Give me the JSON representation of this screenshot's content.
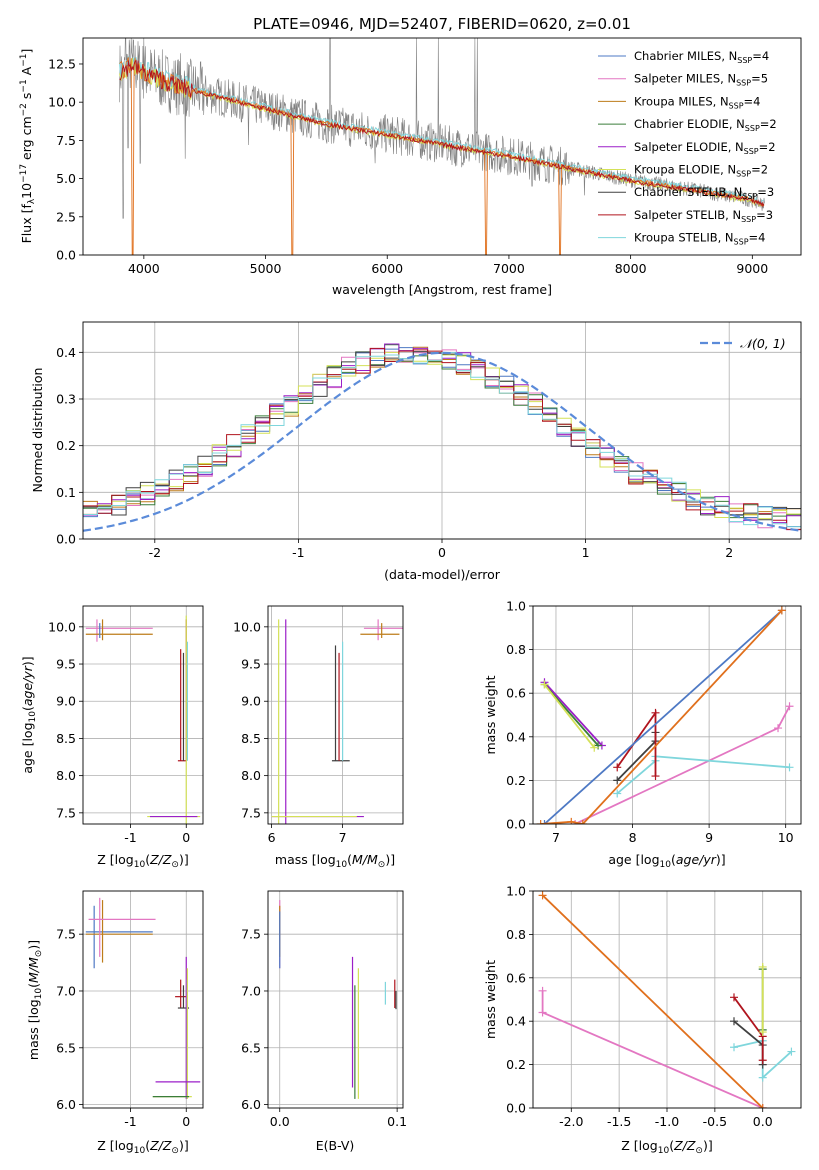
{
  "figure": {
    "title": "PLATE=0946, MJD=52407, FIBERID=0620, z=0.01"
  },
  "colors": {
    "Chabrier MILES": "#4e79c4",
    "Salpeter MILES": "#e377c2",
    "Kroupa MILES": "#bd7c1a",
    "Chabrier ELODIE": "#3a7d3a",
    "Salpeter ELODIE": "#9b1fc8",
    "Kroupa ELODIE": "#d4e157",
    "Chabrier STELIB": "#404040",
    "Salpeter STELIB": "#b0141e",
    "Kroupa STELIB": "#7fd6dc",
    "data": "#808080",
    "model_main": "#e0701d",
    "gaussian": "#5b8bd9"
  },
  "chart_data": [
    {
      "panel": "spectrum",
      "type": "line",
      "xlabel": "wavelength [Angstrom, rest frame]",
      "ylabel": "Flux [f_λ 10^-17 erg cm^-2 s^-1 A^-1]",
      "xlim": [
        3500,
        9400
      ],
      "ylim": [
        0,
        14.2
      ],
      "xticks": [
        4000,
        5000,
        6000,
        7000,
        8000,
        9000
      ],
      "yticks": [
        0.0,
        2.5,
        5.0,
        7.5,
        10.0,
        12.5
      ],
      "grid": false,
      "legend": "top-right",
      "legend_entries": [
        {
          "name": "Chabrier MILES",
          "nssp": "4"
        },
        {
          "name": "Salpeter MILES",
          "nssp": "5"
        },
        {
          "name": "Kroupa MILES",
          "nssp": "4"
        },
        {
          "name": "Chabrier ELODIE",
          "nssp": "2"
        },
        {
          "name": "Salpeter ELODIE",
          "nssp": "2"
        },
        {
          "name": "Kroupa ELODIE",
          "nssp": "2"
        },
        {
          "name": "Chabrier STELIB",
          "nssp": "3"
        },
        {
          "name": "Salpeter STELIB",
          "nssp": "3"
        },
        {
          "name": "Kroupa STELIB",
          "nssp": "4"
        }
      ],
      "continuum": {
        "x": [
          3800,
          3900,
          4000,
          4200,
          4500,
          5000,
          5500,
          6000,
          6500,
          7000,
          7500,
          8000,
          8500,
          9000,
          9100
        ],
        "y": [
          12.0,
          12.5,
          12.0,
          11.3,
          10.6,
          9.6,
          8.6,
          7.9,
          7.2,
          6.5,
          5.7,
          4.9,
          4.3,
          3.6,
          3.3
        ]
      },
      "data_spikes": [
        {
          "x": 3850,
          "y": 14.2
        },
        {
          "x": 4000,
          "y": 14.2
        },
        {
          "x": 4300,
          "y": 13.2
        },
        {
          "x": 5530,
          "y": 14.2
        },
        {
          "x": 6240,
          "y": 14.2
        },
        {
          "x": 6420,
          "y": 14.2
        },
        {
          "x": 6720,
          "y": 14.2
        },
        {
          "x": 6740,
          "y": 14.2
        }
      ],
      "data_dips": [
        {
          "x": 3830,
          "y": 2.4
        },
        {
          "x": 3870,
          "y": 7.0
        },
        {
          "x": 3970,
          "y": 6.0
        },
        {
          "x": 4340,
          "y": 6.3
        },
        {
          "x": 4860,
          "y": 7.2
        },
        {
          "x": 5530,
          "y": 0.0
        },
        {
          "x": 5900,
          "y": 6.0
        },
        {
          "x": 6240,
          "y": 0.0
        },
        {
          "x": 6420,
          "y": 0.0
        },
        {
          "x": 6560,
          "y": 5.8
        },
        {
          "x": 7620,
          "y": 3.9
        },
        {
          "x": 7190,
          "y": 4.5
        }
      ],
      "model_dips": [
        {
          "x": 3905,
          "y": 0.0
        },
        {
          "x": 5220,
          "y": 0.0
        },
        {
          "x": 6810,
          "y": 0.0
        },
        {
          "x": 7420,
          "y": 0.0
        }
      ]
    },
    {
      "panel": "residual_histogram",
      "type": "line",
      "xlabel": "(data-model)/error",
      "ylabel": "Normed distribution",
      "xlim": [
        -2.5,
        2.5
      ],
      "ylim": [
        0,
        0.465
      ],
      "xticks": [
        -2,
        -1,
        0,
        1,
        2
      ],
      "yticks": [
        0.0,
        0.1,
        0.2,
        0.3,
        0.4
      ],
      "grid": true,
      "legend": "top-right",
      "gaussian_label": "𝒩(0, 1)",
      "bin_width": 0.1
    },
    {
      "panel": "age_vs_Z",
      "type": "scatter",
      "xlabel": "Z [log10(Z/Z⊙)]",
      "ylabel": "age  [log10(age/yr)]",
      "xlim": [
        -1.85,
        0.3
      ],
      "ylim": [
        7.35,
        10.28
      ],
      "xticks": [
        -1,
        0
      ],
      "yticks": [
        7.5,
        8.0,
        8.5,
        9.0,
        9.5,
        10.0
      ],
      "grid": true
    },
    {
      "panel": "age_vs_mass",
      "type": "scatter",
      "xlabel": "mass [log10(M/M⊙)]",
      "ylabel": "",
      "xlim": [
        5.95,
        7.85
      ],
      "ylim": [
        7.35,
        10.28
      ],
      "xticks": [
        6,
        7
      ],
      "yticks": [
        7.5,
        8.0,
        8.5,
        9.0,
        9.5,
        10.0
      ],
      "grid": true
    },
    {
      "panel": "weight_vs_age",
      "type": "line",
      "xlabel": "age  [log10(age/yr)]",
      "ylabel": "mass weight",
      "xlim": [
        6.7,
        10.2
      ],
      "ylim": [
        0,
        1.0
      ],
      "xticks": [
        7,
        8,
        9,
        10
      ],
      "yticks": [
        0.0,
        0.2,
        0.4,
        0.6,
        0.8,
        1.0
      ],
      "grid": true,
      "series": [
        {
          "model": "Kroupa MILES",
          "points": [
            [
              6.8,
              0.0
            ],
            [
              7.2,
              0.01
            ],
            [
              7.35,
              0.0
            ],
            [
              9.95,
              0.98
            ]
          ]
        },
        {
          "model": "Chabrier MILES",
          "points": [
            [
              6.85,
              0.0
            ],
            [
              9.95,
              0.98
            ]
          ]
        },
        {
          "model": "Salpeter MILES",
          "points": [
            [
              7.25,
              0.0
            ],
            [
              9.9,
              0.44
            ],
            [
              10.05,
              0.54
            ]
          ]
        },
        {
          "model": "Kroupa STELIB",
          "points": [
            [
              7.8,
              0.14
            ],
            [
              8.3,
              0.29
            ],
            [
              8.3,
              0.31
            ],
            [
              10.05,
              0.26
            ]
          ]
        },
        {
          "model": "Chabrier STELIB",
          "points": [
            [
              7.8,
              0.2
            ],
            [
              8.3,
              0.38
            ],
            [
              8.3,
              0.42
            ]
          ]
        },
        {
          "model": "Salpeter STELIB",
          "points": [
            [
              7.8,
              0.26
            ],
            [
              8.3,
              0.51
            ],
            [
              8.3,
              0.22
            ]
          ]
        },
        {
          "model": "Salpeter ELODIE",
          "points": [
            [
              6.85,
              0.65
            ],
            [
              7.6,
              0.36
            ]
          ]
        },
        {
          "model": "Kroupa ELODIE",
          "points": [
            [
              6.85,
              0.64
            ],
            [
              7.5,
              0.35
            ]
          ]
        },
        {
          "model": "Chabrier ELODIE",
          "points": [
            [
              6.85,
              0.64
            ],
            [
              7.55,
              0.36
            ]
          ]
        }
      ]
    },
    {
      "panel": "mass_vs_Z",
      "type": "scatter",
      "xlabel": "Z [log10(Z/Z⊙)]",
      "ylabel": "mass [log10(M/M⊙)]",
      "xlim": [
        -1.85,
        0.3
      ],
      "ylim": [
        5.97,
        7.88
      ],
      "xticks": [
        -1,
        0
      ],
      "yticks": [
        6.0,
        6.5,
        7.0,
        7.5
      ],
      "grid": true
    },
    {
      "panel": "mass_vs_ebv",
      "type": "scatter",
      "xlabel": "E(B-V)",
      "ylabel": "",
      "xlim": [
        -0.01,
        0.105
      ],
      "ylim": [
        5.97,
        7.88
      ],
      "xticks": [
        0.0,
        0.1
      ],
      "yticks": [
        6.0,
        6.5,
        7.0,
        7.5
      ],
      "grid": true
    },
    {
      "panel": "weight_vs_Z",
      "type": "line",
      "xlabel": "Z [log10(Z/Z⊙)]",
      "ylabel": "mass weight",
      "xlim": [
        -2.4,
        0.4
      ],
      "ylim": [
        0,
        1.0
      ],
      "xticks": [
        -2.0,
        -1.5,
        -1.0,
        -0.5,
        0.0
      ],
      "yticks": [
        0.0,
        0.2,
        0.4,
        0.6,
        0.8,
        1.0
      ],
      "grid": true,
      "series": [
        {
          "model": "Kroupa MILES",
          "points": [
            [
              -2.3,
              0.98
            ],
            [
              0.0,
              0.0
            ]
          ]
        },
        {
          "model": "Salpeter MILES",
          "points": [
            [
              -2.3,
              0.54
            ],
            [
              -2.3,
              0.44
            ],
            [
              0.0,
              0.0
            ]
          ]
        },
        {
          "model": "Salpeter STELIB",
          "points": [
            [
              -0.3,
              0.51
            ],
            [
              0.0,
              0.33
            ],
            [
              0.0,
              0.22
            ]
          ]
        },
        {
          "model": "Chabrier STELIB",
          "points": [
            [
              -0.3,
              0.4
            ],
            [
              0.0,
              0.29
            ],
            [
              0.0,
              0.2
            ]
          ]
        },
        {
          "model": "Kroupa STELIB",
          "points": [
            [
              -0.3,
              0.28
            ],
            [
              0.0,
              0.31
            ],
            [
              0.0,
              0.14
            ],
            [
              0.3,
              0.26
            ]
          ]
        },
        {
          "model": "Kroupa ELODIE",
          "points": [
            [
              0.0,
              0.65
            ],
            [
              0.0,
              0.35
            ]
          ]
        },
        {
          "model": "Chabrier ELODIE",
          "points": [
            [
              0.0,
              0.64
            ],
            [
              0.0,
              0.36
            ]
          ]
        }
      ]
    }
  ]
}
